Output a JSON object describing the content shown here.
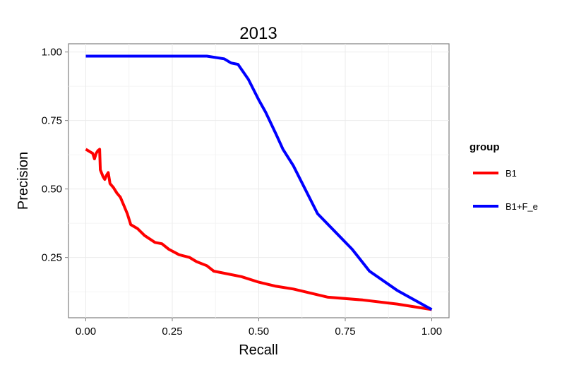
{
  "chart_data": {
    "type": "line",
    "title": "2013",
    "xlabel": "Recall",
    "ylabel": "Precision",
    "xlim": [
      -0.05,
      1.05
    ],
    "ylim": [
      0.03,
      1.03
    ],
    "x_ticks": [
      0.0,
      0.25,
      0.5,
      0.75,
      1.0
    ],
    "x_tick_labels": [
      "0.00",
      "0.25",
      "0.50",
      "0.75",
      "1.00"
    ],
    "y_ticks": [
      0.25,
      0.5,
      0.75,
      1.0
    ],
    "y_tick_labels": [
      "0.25",
      "0.50",
      "0.75",
      "1.00"
    ],
    "grid": true,
    "legend": {
      "title": "group",
      "placement": "right"
    },
    "series": [
      {
        "name": "B1",
        "color": "#ff0000",
        "points": [
          [
            0.0,
            0.645
          ],
          [
            0.02,
            0.63
          ],
          [
            0.025,
            0.61
          ],
          [
            0.03,
            0.63
          ],
          [
            0.035,
            0.64
          ],
          [
            0.04,
            0.645
          ],
          [
            0.042,
            0.57
          ],
          [
            0.05,
            0.545
          ],
          [
            0.055,
            0.535
          ],
          [
            0.06,
            0.55
          ],
          [
            0.065,
            0.56
          ],
          [
            0.07,
            0.52
          ],
          [
            0.08,
            0.505
          ],
          [
            0.09,
            0.485
          ],
          [
            0.1,
            0.47
          ],
          [
            0.11,
            0.44
          ],
          [
            0.12,
            0.41
          ],
          [
            0.13,
            0.37
          ],
          [
            0.15,
            0.355
          ],
          [
            0.17,
            0.33
          ],
          [
            0.2,
            0.305
          ],
          [
            0.22,
            0.3
          ],
          [
            0.24,
            0.28
          ],
          [
            0.27,
            0.26
          ],
          [
            0.3,
            0.25
          ],
          [
            0.32,
            0.235
          ],
          [
            0.35,
            0.22
          ],
          [
            0.37,
            0.2
          ],
          [
            0.45,
            0.18
          ],
          [
            0.5,
            0.16
          ],
          [
            0.55,
            0.145
          ],
          [
            0.6,
            0.135
          ],
          [
            0.7,
            0.105
          ],
          [
            0.8,
            0.095
          ],
          [
            0.9,
            0.08
          ],
          [
            1.0,
            0.06
          ]
        ]
      },
      {
        "name": "B1+F_e",
        "color": "#0000ff",
        "points": [
          [
            0.0,
            0.985
          ],
          [
            0.35,
            0.985
          ],
          [
            0.4,
            0.975
          ],
          [
            0.42,
            0.96
          ],
          [
            0.44,
            0.955
          ],
          [
            0.47,
            0.9
          ],
          [
            0.5,
            0.825
          ],
          [
            0.52,
            0.78
          ],
          [
            0.55,
            0.7
          ],
          [
            0.57,
            0.645
          ],
          [
            0.6,
            0.585
          ],
          [
            0.63,
            0.51
          ],
          [
            0.67,
            0.41
          ],
          [
            0.72,
            0.345
          ],
          [
            0.77,
            0.28
          ],
          [
            0.82,
            0.2
          ],
          [
            0.9,
            0.13
          ],
          [
            1.0,
            0.06
          ]
        ]
      }
    ]
  }
}
